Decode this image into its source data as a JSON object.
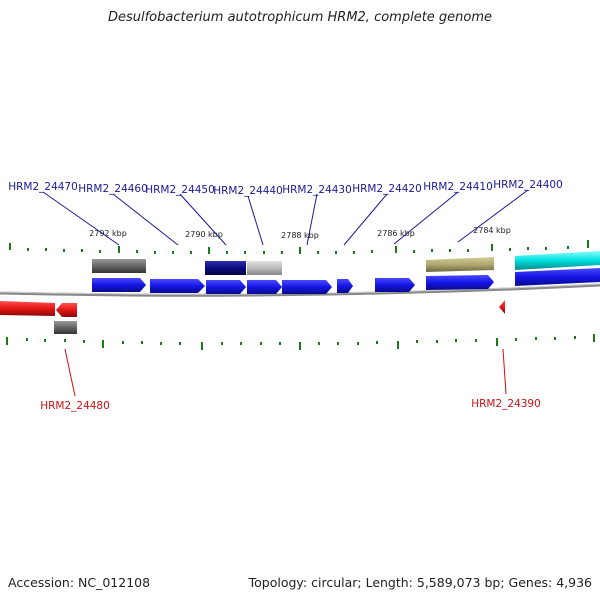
{
  "title": "Desulfobacterium autotrophicum HRM2, complete genome",
  "footer": {
    "accession": "Accession: NC_012108",
    "topology": "Topology: circular; Length: 5,589,073 bp; Genes: 4,936"
  },
  "scale_labels": [
    "2792 kbp",
    "2790 kbp",
    "2788 kbp",
    "2786 kbp",
    "2784 kbp"
  ],
  "genes_top": [
    "HRM2_24470",
    "HRM2_24460",
    "HRM2_24450",
    "HRM2_24440",
    "HRM2_24430",
    "HRM2_24420",
    "HRM2_24410",
    "HRM2_24400"
  ],
  "genes_bottom": [
    "HRM2_24480",
    "HRM2_24390"
  ],
  "colors": {
    "gene_blue": "#1515e6",
    "gene_red": "#e61515",
    "label_blue": "#1a1a99",
    "label_red": "#cc1111",
    "tick_green": "#1a7a1a",
    "backbone": "#888888",
    "cyan": "#00dede",
    "olive": "#b0a870",
    "navy": "#0a0a80",
    "gray_dark": "#666666",
    "gray_light": "#bbbbbb"
  }
}
